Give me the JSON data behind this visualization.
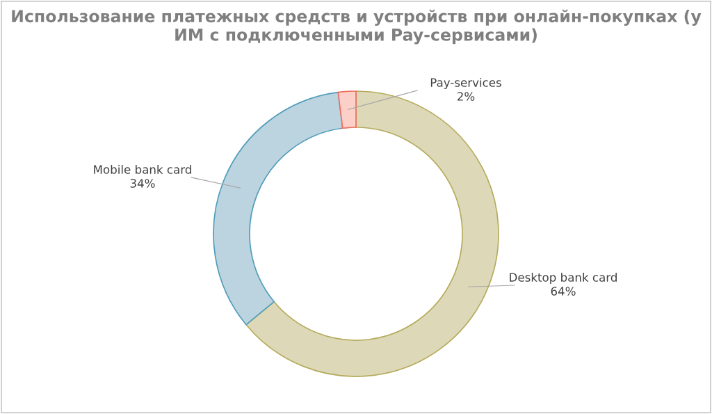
{
  "chart_data": {
    "type": "donut",
    "title": "Использование платежных средств и устройств при онлайн-покупках (у ИМ с подключенными Pay-сервисами)",
    "categories": [
      "Desktop bank card",
      "Mobile bank card",
      "Pay-services"
    ],
    "values": [
      64,
      34,
      2
    ],
    "colors": [
      "#ddd8b8",
      "#bcd3e0",
      "#fcd0c8"
    ],
    "value_labels": [
      "64%",
      "34%",
      "2%"
    ],
    "legend": false
  }
}
